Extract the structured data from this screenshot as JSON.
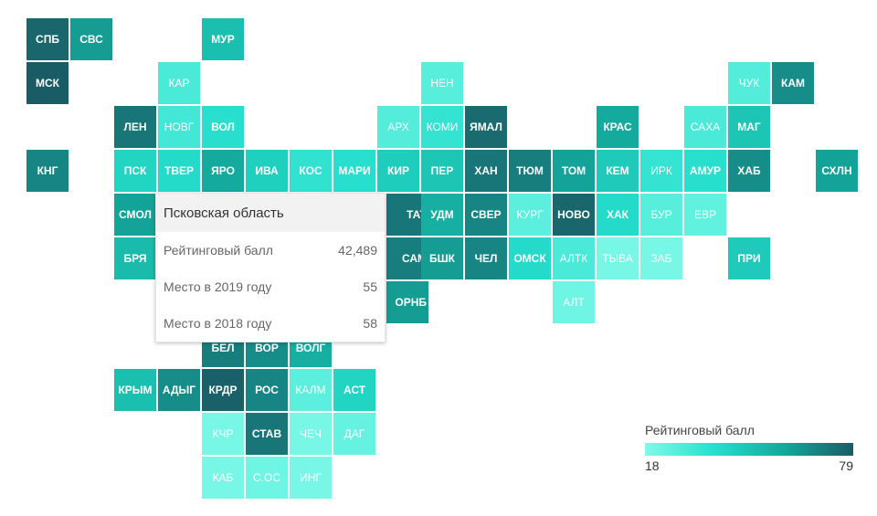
{
  "chart_data": {
    "type": "heatmap",
    "title": "",
    "legend_title": "Рейтинговый балл",
    "scale_min": 18,
    "scale_max": 79,
    "colors": [
      "#81fae9",
      "#25dfcc",
      "#14a89c",
      "#1a5c65"
    ],
    "tiles": [
      {
        "label": "СПБ",
        "col": 0,
        "row": 0,
        "value": 76
      },
      {
        "label": "СВС",
        "col": 1,
        "row": 0,
        "value": 62
      },
      {
        "label": "МУР",
        "col": 4,
        "row": 0,
        "value": 50
      },
      {
        "label": "МСК",
        "col": 0,
        "row": 1,
        "value": 79
      },
      {
        "label": "КАР",
        "col": 3,
        "row": 1,
        "value": 30
      },
      {
        "label": "НЕН",
        "col": 9,
        "row": 1,
        "value": 27
      },
      {
        "label": "ЧУК",
        "col": 16,
        "row": 1,
        "value": 28
      },
      {
        "label": "КАМ",
        "col": 17,
        "row": 1,
        "value": 66
      },
      {
        "label": "ЛЕН",
        "col": 2,
        "row": 2,
        "value": 72
      },
      {
        "label": "НОВГ",
        "col": 3,
        "row": 2,
        "value": 32
      },
      {
        "label": "ВОЛ",
        "col": 4,
        "row": 2,
        "value": 38
      },
      {
        "label": "АРХ",
        "col": 8,
        "row": 2,
        "value": 28
      },
      {
        "label": "КОМИ",
        "col": 9,
        "row": 2,
        "value": 35
      },
      {
        "label": "ЯМАЛ",
        "col": 10,
        "row": 2,
        "value": 75
      },
      {
        "label": "КРАС",
        "col": 13,
        "row": 2,
        "value": 58
      },
      {
        "label": "САХА",
        "col": 15,
        "row": 2,
        "value": 30
      },
      {
        "label": "МАГ",
        "col": 16,
        "row": 2,
        "value": 48
      },
      {
        "label": "КНГ",
        "col": 0,
        "row": 3,
        "value": 68
      },
      {
        "label": "ПСК",
        "col": 2,
        "row": 3,
        "value": 42
      },
      {
        "label": "ТВЕР",
        "col": 3,
        "row": 3,
        "value": 40
      },
      {
        "label": "ЯРО",
        "col": 4,
        "row": 3,
        "value": 58
      },
      {
        "label": "ИВА",
        "col": 5,
        "row": 3,
        "value": 44
      },
      {
        "label": "КОС",
        "col": 6,
        "row": 3,
        "value": 36
      },
      {
        "label": "МАРИ",
        "col": 7,
        "row": 3,
        "value": 38
      },
      {
        "label": "КИР",
        "col": 8,
        "row": 3,
        "value": 45
      },
      {
        "label": "ПЕР",
        "col": 9,
        "row": 3,
        "value": 48
      },
      {
        "label": "ХАН",
        "col": 10,
        "row": 3,
        "value": 72
      },
      {
        "label": "ТЮМ",
        "col": 11,
        "row": 3,
        "value": 70
      },
      {
        "label": "ТОМ",
        "col": 12,
        "row": 3,
        "value": 60
      },
      {
        "label": "КЕМ",
        "col": 13,
        "row": 3,
        "value": 46
      },
      {
        "label": "ИРК",
        "col": 14,
        "row": 3,
        "value": 35
      },
      {
        "label": "АМУР",
        "col": 15,
        "row": 3,
        "value": 38
      },
      {
        "label": "ХАБ",
        "col": 16,
        "row": 3,
        "value": 66
      },
      {
        "label": "СХЛН",
        "col": 18,
        "row": 3,
        "value": 60
      },
      {
        "label": "СМОЛ",
        "col": 2,
        "row": 4,
        "value": 60
      },
      {
        "label": "ТАТ",
        "col": 9,
        "row": 4,
        "value": 72,
        "offset": -38
      },
      {
        "label": "УДМ",
        "col": 9,
        "row": 4,
        "value": 56
      },
      {
        "label": "СВЕР",
        "col": 10,
        "row": 4,
        "value": 68
      },
      {
        "label": "КУРГ",
        "col": 11,
        "row": 4,
        "value": 26
      },
      {
        "label": "НОВО",
        "col": 12,
        "row": 4,
        "value": 76
      },
      {
        "label": "ХАК",
        "col": 13,
        "row": 4,
        "value": 40
      },
      {
        "label": "БУР",
        "col": 14,
        "row": 4,
        "value": 27
      },
      {
        "label": "ЕВР",
        "col": 15,
        "row": 4,
        "value": 25
      },
      {
        "label": "БРЯ",
        "col": 2,
        "row": 5,
        "value": 52
      },
      {
        "label": "САМ",
        "col": 9,
        "row": 5,
        "value": 70,
        "offset": -38
      },
      {
        "label": "БШК",
        "col": 9,
        "row": 5,
        "value": 62
      },
      {
        "label": "ЧЕЛ",
        "col": 10,
        "row": 5,
        "value": 68
      },
      {
        "label": "ОМСК",
        "col": 11,
        "row": 5,
        "value": 40
      },
      {
        "label": "АЛТК",
        "col": 12,
        "row": 5,
        "value": 30
      },
      {
        "label": "ТЫВА",
        "col": 13,
        "row": 5,
        "value": 20
      },
      {
        "label": "ЗАБ",
        "col": 14,
        "row": 5,
        "value": 20
      },
      {
        "label": "ПРИ",
        "col": 16,
        "row": 5,
        "value": 46
      },
      {
        "label": "ОРНБ",
        "col": 9,
        "row": 6,
        "value": 62,
        "offset": -38
      },
      {
        "label": "АЛТ",
        "col": 12,
        "row": 6,
        "value": 22
      },
      {
        "label": "БЕЛ",
        "col": 4,
        "row": 7,
        "value": 70,
        "clip": true
      },
      {
        "label": "ВОР",
        "col": 5,
        "row": 7,
        "value": 66,
        "clip": true
      },
      {
        "label": "ВОЛГ",
        "col": 6,
        "row": 7,
        "value": 56,
        "clip": true
      },
      {
        "label": "КРЫМ",
        "col": 2,
        "row": 8,
        "value": 50
      },
      {
        "label": "АДЫГ",
        "col": 3,
        "row": 8,
        "value": 66
      },
      {
        "label": "КРДР",
        "col": 4,
        "row": 8,
        "value": 78
      },
      {
        "label": "РОС",
        "col": 5,
        "row": 8,
        "value": 68
      },
      {
        "label": "КАЛМ",
        "col": 6,
        "row": 8,
        "value": 26
      },
      {
        "label": "АСТ",
        "col": 7,
        "row": 8,
        "value": 42
      },
      {
        "label": "КЧР",
        "col": 4,
        "row": 9,
        "value": 20
      },
      {
        "label": "СТАВ",
        "col": 5,
        "row": 9,
        "value": 72
      },
      {
        "label": "ЧЕЧ",
        "col": 6,
        "row": 9,
        "value": 20
      },
      {
        "label": "ДАГ",
        "col": 7,
        "row": 9,
        "value": 24
      },
      {
        "label": "КАБ",
        "col": 4,
        "row": 10,
        "value": 20
      },
      {
        "label": "С.ОС",
        "col": 5,
        "row": 10,
        "value": 22
      },
      {
        "label": "ИНГ",
        "col": 6,
        "row": 10,
        "value": 20
      }
    ]
  },
  "tooltip": {
    "title": "Псковская область",
    "rows": [
      {
        "label": "Рейтинговый балл",
        "value": "42,489"
      },
      {
        "label": "Место в 2019 году",
        "value": "55"
      },
      {
        "label": "Место в 2018 году",
        "value": "58"
      }
    ]
  },
  "legend": {
    "title": "Рейтинговый балл",
    "min_label": "18",
    "max_label": "79"
  }
}
